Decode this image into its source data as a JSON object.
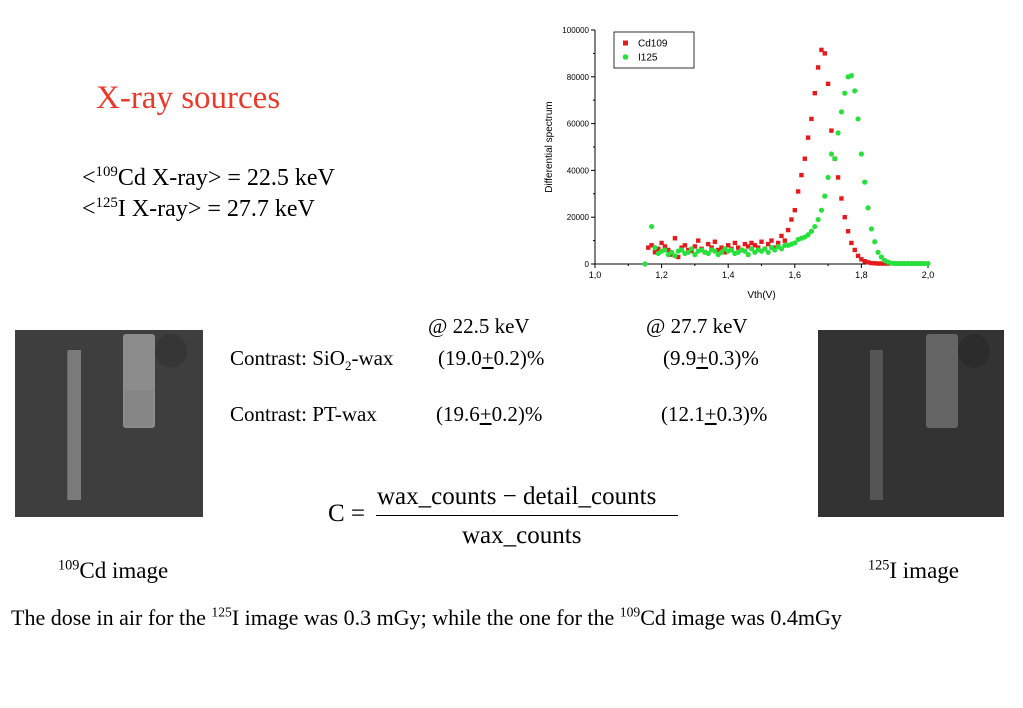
{
  "slide": {
    "title": "X-ray sources",
    "energies": [
      {
        "iso_mass": "109",
        "iso_text": "Cd X-ray> = 22.5 keV"
      },
      {
        "iso_mass": "125",
        "iso_text": "I X-ray> = 27.7 keV"
      }
    ],
    "lt": "<"
  },
  "contrast_table": {
    "headers": [
      "@ 22.5 keV",
      "@ 27.7 keV"
    ],
    "rows": [
      {
        "label_pre": "Contrast: SiO",
        "label_sub": "2",
        "label_post": "-wax",
        "v1": "(19.0",
        "e1": "+",
        "r1": "0.2)%",
        "v2": "(9.9",
        "e2": "+",
        "r2": "0.3)%"
      },
      {
        "label_pre": "Contrast: PT-wax",
        "label_sub": "",
        "label_post": "",
        "v1": "(19.6",
        "e1": "+",
        "r1": "0.2)%",
        "v2": "(12.1",
        "e2": "+",
        "r2": "0.3)%"
      }
    ]
  },
  "formula": {
    "lhs": "C =",
    "numerator": "wax_counts − detail_counts",
    "denominator": "wax_counts"
  },
  "images": {
    "left_label_mass": "109",
    "left_label_text": "Cd image",
    "right_label_mass": "125",
    "right_label_text": "I image"
  },
  "dose": {
    "t1": "The dose in air for the ",
    "m1": "125",
    "t2": "I image was 0.3 mGy; while the one for the ",
    "m2": "109",
    "t3": "Cd image was 0.4mGy"
  },
  "chart_data": {
    "type": "scatter",
    "title": "",
    "xlabel": "Vth(V)",
    "ylabel": "Differential spectrum",
    "xlim": [
      1.0,
      2.0
    ],
    "ylim": [
      0,
      100000
    ],
    "x_ticks": [
      "1,0",
      "1,2",
      "1,4",
      "1,6",
      "1,8",
      "2,0"
    ],
    "y_ticks": [
      "0",
      "20000",
      "40000",
      "60000",
      "80000",
      "100000"
    ],
    "legend_position": "top-left",
    "series": [
      {
        "name": "Cd109",
        "color": "#e41a1c",
        "marker": "square",
        "x": [
          1.16,
          1.17,
          1.18,
          1.19,
          1.2,
          1.21,
          1.22,
          1.23,
          1.24,
          1.25,
          1.26,
          1.27,
          1.28,
          1.29,
          1.3,
          1.31,
          1.32,
          1.33,
          1.34,
          1.35,
          1.36,
          1.37,
          1.38,
          1.39,
          1.4,
          1.41,
          1.42,
          1.43,
          1.44,
          1.45,
          1.46,
          1.47,
          1.48,
          1.49,
          1.5,
          1.51,
          1.52,
          1.53,
          1.54,
          1.55,
          1.56,
          1.57,
          1.58,
          1.59,
          1.6,
          1.61,
          1.62,
          1.63,
          1.64,
          1.65,
          1.66,
          1.67,
          1.68,
          1.69,
          1.7,
          1.71,
          1.72,
          1.73,
          1.74,
          1.75,
          1.76,
          1.77,
          1.78,
          1.79,
          1.8,
          1.81,
          1.82,
          1.83,
          1.84,
          1.85,
          1.86,
          1.87,
          1.88,
          1.9,
          1.92,
          1.94,
          1.96,
          1.98
        ],
        "y": [
          7000,
          8000,
          5000,
          6500,
          9000,
          7500,
          6000,
          4000,
          11000,
          3000,
          7000,
          8000,
          6000,
          5500,
          7500,
          10000,
          6500,
          5000,
          8500,
          7000,
          9500,
          6000,
          7000,
          5000,
          8000,
          6500,
          9000,
          7000,
          6000,
          8500,
          7500,
          9000,
          8000,
          7000,
          9500,
          6500,
          8500,
          10000,
          7000,
          9000,
          12000,
          10000,
          14500,
          19000,
          23000,
          31000,
          38000,
          45000,
          54000,
          62000,
          73000,
          84000,
          91500,
          90000,
          77000,
          57000,
          45000,
          37000,
          28000,
          20000,
          14000,
          9000,
          6000,
          3500,
          2000,
          1200,
          700,
          400,
          300,
          200,
          200,
          200,
          200,
          200,
          200,
          200,
          200,
          200
        ]
      },
      {
        "name": "I125",
        "color": "#27e03c",
        "marker": "circle",
        "x": [
          1.15,
          1.17,
          1.18,
          1.19,
          1.2,
          1.21,
          1.22,
          1.23,
          1.24,
          1.25,
          1.26,
          1.27,
          1.28,
          1.29,
          1.3,
          1.31,
          1.32,
          1.33,
          1.34,
          1.35,
          1.36,
          1.37,
          1.38,
          1.39,
          1.4,
          1.41,
          1.42,
          1.43,
          1.44,
          1.45,
          1.46,
          1.47,
          1.48,
          1.49,
          1.5,
          1.51,
          1.52,
          1.53,
          1.54,
          1.55,
          1.56,
          1.57,
          1.58,
          1.59,
          1.6,
          1.61,
          1.62,
          1.63,
          1.64,
          1.65,
          1.66,
          1.67,
          1.68,
          1.69,
          1.7,
          1.71,
          1.72,
          1.73,
          1.74,
          1.75,
          1.76,
          1.77,
          1.78,
          1.79,
          1.8,
          1.81,
          1.82,
          1.83,
          1.84,
          1.85,
          1.86,
          1.87,
          1.88,
          1.89,
          1.9,
          1.91,
          1.92,
          1.93,
          1.94,
          1.95,
          1.96,
          1.97,
          1.98,
          1.99,
          2.0
        ],
        "y": [
          0,
          16000,
          7000,
          4500,
          5500,
          6000,
          4000,
          5000,
          3500,
          5500,
          6000,
          4500,
          5000,
          6500,
          4000,
          5500,
          6000,
          5000,
          4500,
          6000,
          5500,
          4000,
          5000,
          6500,
          5500,
          6000,
          4500,
          5000,
          6000,
          5500,
          4000,
          6500,
          5000,
          6000,
          5500,
          6500,
          5000,
          7000,
          6000,
          7500,
          6500,
          8000,
          8000,
          8500,
          9000,
          10500,
          11000,
          11500,
          12500,
          14000,
          16000,
          19000,
          23000,
          29000,
          37000,
          47000,
          45000,
          56000,
          65000,
          73000,
          80000,
          80500,
          74000,
          62000,
          47000,
          35000,
          24000,
          15000,
          9500,
          5000,
          3000,
          1500,
          800,
          400,
          200,
          200,
          200,
          200,
          200,
          200,
          200,
          200,
          200,
          200,
          200
        ]
      }
    ]
  }
}
